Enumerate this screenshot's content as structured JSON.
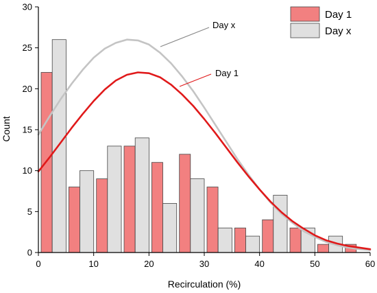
{
  "chart_data": {
    "type": "bar",
    "xlabel": "Recirculation (%)",
    "ylabel": "Count",
    "xlim": [
      0,
      60
    ],
    "ylim": [
      0,
      30
    ],
    "xticks": [
      0,
      10,
      20,
      30,
      40,
      50,
      60
    ],
    "yticks": [
      0,
      5,
      10,
      15,
      20,
      25,
      30
    ],
    "grid": false,
    "legend_position": "top-right",
    "series": [
      {
        "name": "Day 1",
        "color": "#f28080",
        "bins": [
          {
            "x0": 0.5,
            "x1": 2.5,
            "value": 22
          },
          {
            "x0": 5.5,
            "x1": 7.5,
            "value": 8
          },
          {
            "x0": 10.5,
            "x1": 12.5,
            "value": 9
          },
          {
            "x0": 15.5,
            "x1": 17.5,
            "value": 13
          },
          {
            "x0": 20.5,
            "x1": 22.5,
            "value": 11
          },
          {
            "x0": 25.5,
            "x1": 27.5,
            "value": 12
          },
          {
            "x0": 30.5,
            "x1": 32.5,
            "value": 8
          },
          {
            "x0": 35.5,
            "x1": 37.5,
            "value": 3
          },
          {
            "x0": 40.5,
            "x1": 42.5,
            "value": 4
          },
          {
            "x0": 45.5,
            "x1": 47.5,
            "value": 3
          },
          {
            "x0": 50.5,
            "x1": 52.5,
            "value": 1
          },
          {
            "x0": 55.5,
            "x1": 57.5,
            "value": 1
          }
        ],
        "fit": {
          "color": "#e0191a",
          "x": [
            0,
            2,
            4,
            6,
            8,
            10,
            12,
            14,
            16,
            18,
            20,
            22,
            24,
            26,
            28,
            30,
            32,
            34,
            36,
            38,
            40,
            42,
            44,
            46,
            48,
            50,
            52,
            54,
            56,
            58,
            60
          ],
          "y": [
            9.9,
            11.6,
            13.4,
            15.2,
            16.9,
            18.5,
            19.9,
            21,
            21.7,
            22,
            21.9,
            21.4,
            20.5,
            19.3,
            17.9,
            16.3,
            14.6,
            12.8,
            11,
            9.3,
            7.7,
            6.2,
            4.9,
            3.8,
            2.9,
            2.1,
            1.5,
            1.1,
            0.8,
            0.6,
            0.4
          ]
        },
        "annotation": "Day 1"
      },
      {
        "name": "Day x",
        "color": "#e0e0e0",
        "bins": [
          {
            "x0": 2.5,
            "x1": 5,
            "value": 26
          },
          {
            "x0": 7.5,
            "x1": 10,
            "value": 10
          },
          {
            "x0": 12.5,
            "x1": 15,
            "value": 13
          },
          {
            "x0": 17.5,
            "x1": 20,
            "value": 14
          },
          {
            "x0": 22.5,
            "x1": 25,
            "value": 6
          },
          {
            "x0": 27.5,
            "x1": 30,
            "value": 9
          },
          {
            "x0": 32.5,
            "x1": 35,
            "value": 3
          },
          {
            "x0": 37.5,
            "x1": 40,
            "value": 2
          },
          {
            "x0": 42.5,
            "x1": 45,
            "value": 7
          },
          {
            "x0": 47.5,
            "x1": 50,
            "value": 3
          },
          {
            "x0": 52.5,
            "x1": 55,
            "value": 2
          }
        ],
        "fit": {
          "color": "#c4c4c4",
          "x": [
            0,
            2,
            4,
            6,
            8,
            10,
            12,
            14,
            16,
            18,
            20,
            22,
            24,
            26,
            28,
            30,
            32,
            34,
            36,
            38,
            40,
            42,
            44,
            46,
            48,
            50,
            52,
            54,
            56,
            58,
            60
          ],
          "y": [
            14.4,
            16.6,
            18.7,
            20.6,
            22.3,
            23.8,
            24.9,
            25.6,
            26,
            25.9,
            25.4,
            24.4,
            23.1,
            21.5,
            19.7,
            17.7,
            15.6,
            13.5,
            11.4,
            9.5,
            7.7,
            6.1,
            4.7,
            3.6,
            2.6,
            1.9,
            1.3,
            0.9,
            0.6,
            0.4,
            0.3
          ]
        },
        "annotation": "Day x"
      }
    ]
  }
}
